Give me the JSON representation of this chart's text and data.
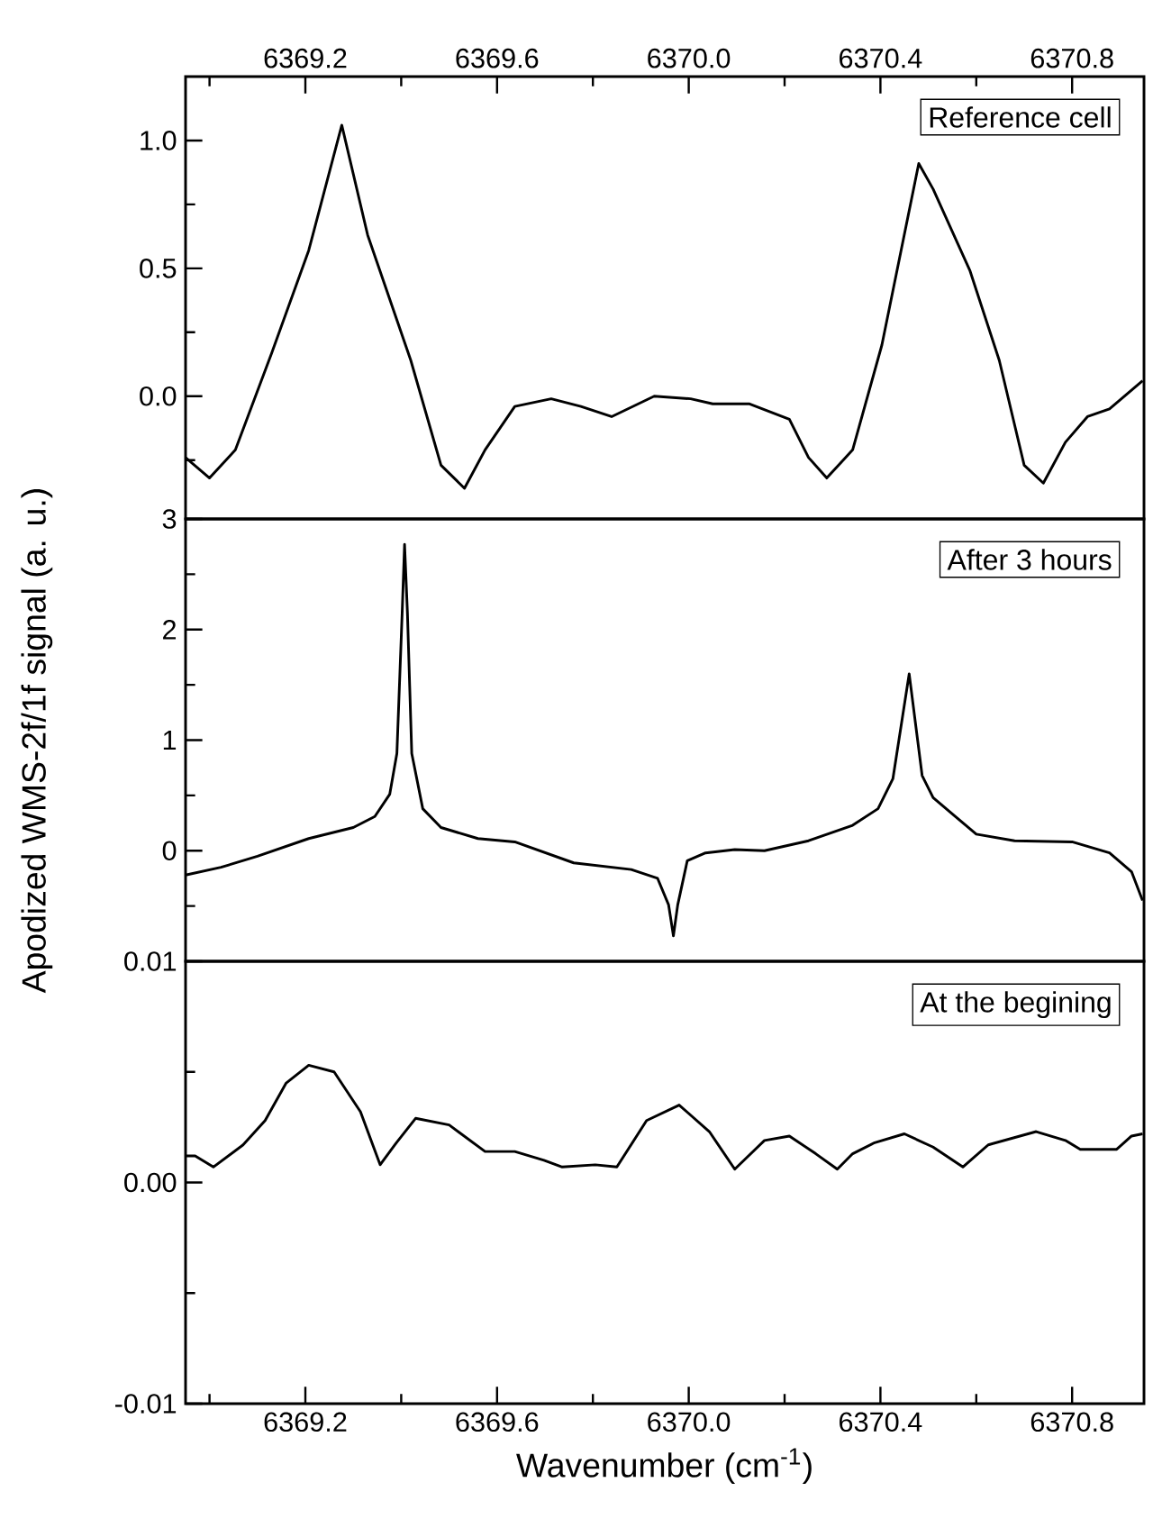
{
  "chart_data": [
    {
      "type": "line",
      "xlim": [
        6368.95,
        6370.95
      ],
      "xticks": [
        {
          "value": 6369.0,
          "label": null
        },
        6369.2,
        {
          "value": 6369.4,
          "label": null
        },
        6369.6,
        {
          "value": 6369.8,
          "label": null
        },
        {
          "value": 6370.0,
          "label": "6370.0"
        },
        {
          "value": 6370.2,
          "label": null
        },
        6370.4,
        {
          "value": 6370.6,
          "label": null
        },
        6370.8
      ],
      "ylim": [
        -0.48,
        1.25
      ],
      "yticks": [
        {
          "value": -0.25,
          "label": null
        },
        {
          "value": 0,
          "label": "0.0"
        },
        {
          "value": 0.25,
          "label": null
        },
        0.5,
        {
          "value": 0.75,
          "label": null
        },
        {
          "value": 1,
          "label": "1.0"
        }
      ],
      "annotations": [
        "Reference cell"
      ],
      "series": [
        {
          "color": "#000000",
          "x": [
            6368.95,
            6369.0,
            6369.054,
            6369.13,
            6369.207,
            6369.276,
            6369.33,
            6369.42,
            6369.483,
            6369.532,
            6369.575,
            6369.637,
            6369.713,
            6369.775,
            6369.839,
            6369.928,
            6370.004,
            6370.05,
            6370.127,
            6370.21,
            6370.25,
            6370.288,
            6370.342,
            6370.403,
            6370.48,
            6370.51,
            6370.587,
            6370.648,
            6370.7,
            6370.74,
            6370.786,
            6370.832,
            6370.878,
            6370.947
          ],
          "values": [
            -0.24,
            -0.32,
            -0.21,
            0.17,
            0.57,
            1.06,
            0.63,
            0.14,
            -0.27,
            -0.36,
            -0.21,
            -0.04,
            -0.01,
            -0.04,
            -0.08,
            0.0,
            -0.01,
            -0.03,
            -0.03,
            -0.09,
            -0.24,
            -0.32,
            -0.21,
            0.2,
            0.91,
            0.81,
            0.49,
            0.14,
            -0.27,
            -0.34,
            -0.18,
            -0.08,
            -0.05,
            0.06
          ]
        }
      ]
    },
    {
      "type": "line",
      "xlim": [
        6368.95,
        6370.95
      ],
      "tick_labels": "y",
      "ylim": [
        -1,
        3
      ],
      "yticks": [
        {
          "value": -0.5,
          "label": null
        },
        0,
        {
          "value": 0.5,
          "label": null
        },
        1,
        {
          "value": 1.5,
          "label": null
        },
        2,
        {
          "value": 2.5,
          "label": null
        },
        3
      ],
      "ylabel": "Apodized WMS-2f/1f signal (a. u.)",
      "annotations": [
        "After 3 hours"
      ],
      "series": [
        {
          "color": "#000000",
          "x": [
            6368.95,
            6369.024,
            6369.1,
            6369.207,
            6369.3,
            6369.345,
            6369.376,
            6369.391,
            6369.402,
            6369.407,
            6369.413,
            6369.422,
            6369.445,
            6369.483,
            6369.56,
            6369.637,
            6369.76,
            6369.88,
            6369.935,
            6369.958,
            6369.968,
            6369.977,
            6369.997,
            6370.035,
            6370.096,
            6370.158,
            6370.25,
            6370.342,
            6370.395,
            6370.426,
            6370.46,
            6370.487,
            6370.51,
            6370.556,
            6370.6,
            6370.68,
            6370.8,
            6370.878,
            6370.924,
            6370.947
          ],
          "values": [
            -0.22,
            -0.15,
            -0.05,
            0.11,
            0.21,
            0.31,
            0.51,
            0.88,
            2.15,
            2.77,
            2.15,
            0.88,
            0.38,
            0.21,
            0.11,
            0.08,
            -0.11,
            -0.17,
            -0.25,
            -0.49,
            -0.77,
            -0.49,
            -0.09,
            -0.02,
            0.01,
            0.0,
            0.09,
            0.23,
            0.38,
            0.65,
            1.6,
            0.68,
            0.48,
            0.31,
            0.15,
            0.09,
            0.08,
            -0.02,
            -0.19,
            -0.45
          ]
        }
      ]
    },
    {
      "type": "line",
      "xlim": [
        6368.95,
        6370.95
      ],
      "xticks": [
        {
          "value": 6369.0,
          "label": null
        },
        6369.2,
        {
          "value": 6369.4,
          "label": null
        },
        6369.6,
        {
          "value": 6369.8,
          "label": null
        },
        {
          "value": 6370.0,
          "label": "6370.0"
        },
        {
          "value": 6370.2,
          "label": null
        },
        6370.4,
        {
          "value": 6370.6,
          "label": null
        },
        6370.8
      ],
      "ylim": [
        -0.01,
        0.01
      ],
      "yticks": [
        -0.01,
        {
          "value": -0.005,
          "label": null
        },
        {
          "value": 0,
          "label": "0.00"
        },
        {
          "value": 0.005,
          "label": null
        },
        0.01
      ],
      "xlabel": "Wavenumber (cm$^{-1}$)",
      "annotations": [
        "At the begining"
      ],
      "series": [
        {
          "color": "#000000",
          "x": [
            6368.95,
            6368.97,
            6369.008,
            6369.07,
            6369.116,
            6369.16,
            6369.207,
            6369.26,
            6369.315,
            6369.356,
            6369.39,
            6369.43,
            6369.5,
            6369.575,
            6369.637,
            6369.698,
            6369.736,
            6369.805,
            6369.85,
            6369.912,
            6369.98,
            6370.043,
            6370.096,
            6370.158,
            6370.21,
            6370.265,
            6370.31,
            6370.342,
            6370.388,
            6370.45,
            6370.51,
            6370.572,
            6370.625,
            6370.725,
            6370.786,
            6370.817,
            6370.893,
            6370.924,
            6370.947
          ],
          "values": [
            0.0012,
            0.0012,
            0.0007,
            0.0017,
            0.0028,
            0.0045,
            0.0053,
            0.005,
            0.0032,
            0.0008,
            0.0018,
            0.0029,
            0.0026,
            0.0014,
            0.0014,
            0.001,
            0.0007,
            0.0008,
            0.0007,
            0.0028,
            0.0035,
            0.0023,
            0.0006,
            0.0019,
            0.0021,
            0.0013,
            0.0006,
            0.0013,
            0.0018,
            0.0022,
            0.0016,
            0.0007,
            0.0017,
            0.0023,
            0.0019,
            0.0015,
            0.0015,
            0.0021,
            0.0022
          ]
        }
      ]
    }
  ]
}
